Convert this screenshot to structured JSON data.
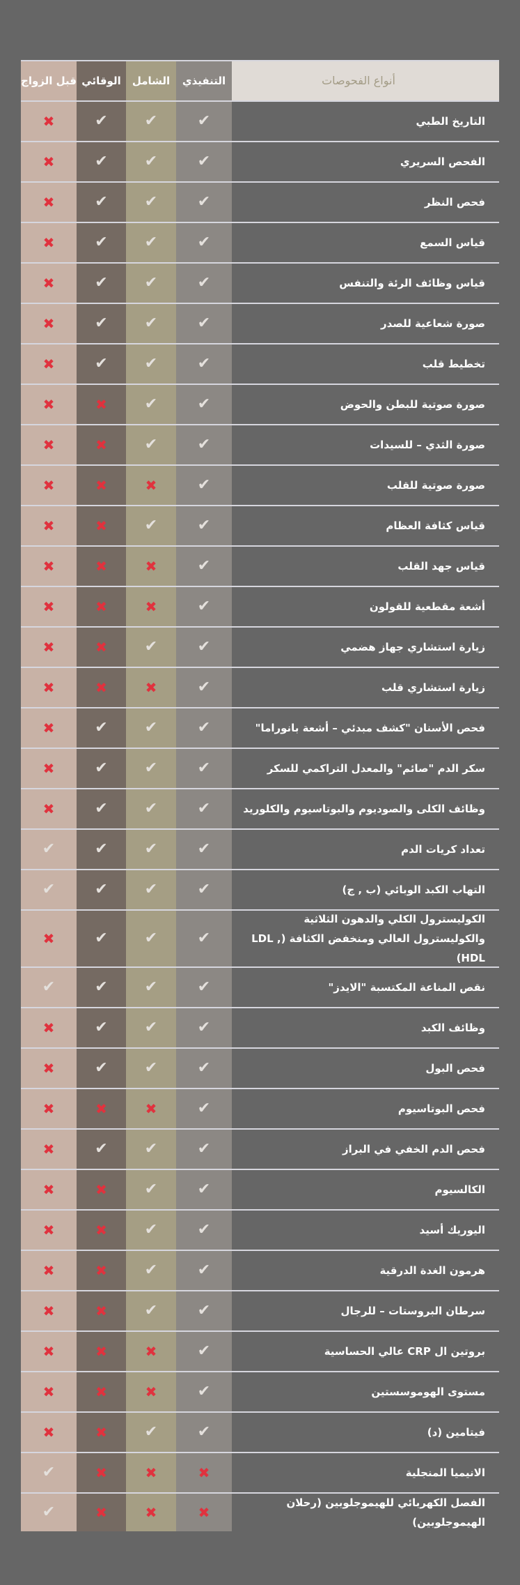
{
  "header": {
    "label": "أنواع الفحوصات",
    "plans": [
      "التنفيذي",
      "الشامل",
      "الوقائي",
      "قبل الزواج"
    ]
  },
  "colors": {
    "background": "#666666",
    "executive": "#8c8884",
    "comprehensive": "#a59e84",
    "preventive": "#756a62",
    "premarital": "#c8b2a6",
    "check": "#e4e0dc",
    "cross": "#e0323e"
  },
  "icons": {
    "included": "check-icon",
    "excluded": "cross-icon"
  },
  "rows": [
    {
      "name": "التاريخ الطبي",
      "values": [
        true,
        true,
        true,
        false
      ]
    },
    {
      "name": "الفحص السريري",
      "values": [
        true,
        true,
        true,
        false
      ]
    },
    {
      "name": "فحص النظر",
      "values": [
        true,
        true,
        true,
        false
      ]
    },
    {
      "name": "قياس السمع",
      "values": [
        true,
        true,
        true,
        false
      ]
    },
    {
      "name": "قياس وظائف الرئة والتنفس",
      "values": [
        true,
        true,
        true,
        false
      ]
    },
    {
      "name": "صورة شعاعية للصدر",
      "values": [
        true,
        true,
        true,
        false
      ]
    },
    {
      "name": "تخطيط قلب",
      "values": [
        true,
        true,
        true,
        false
      ]
    },
    {
      "name": "صورة صوتية للبطن والحوض",
      "values": [
        true,
        true,
        false,
        false
      ]
    },
    {
      "name": "صورة الثدي – للسيدات",
      "values": [
        true,
        true,
        false,
        false
      ]
    },
    {
      "name": "صورة صوتية للقلب",
      "values": [
        true,
        false,
        false,
        false
      ]
    },
    {
      "name": "قياس كثافة العظام",
      "values": [
        true,
        true,
        false,
        false
      ]
    },
    {
      "name": "قياس جهد القلب",
      "values": [
        true,
        false,
        false,
        false
      ]
    },
    {
      "name": "أشعة مقطعية للقولون",
      "values": [
        true,
        false,
        false,
        false
      ]
    },
    {
      "name": "زيارة استشاري جهاز هضمي",
      "values": [
        true,
        true,
        false,
        false
      ]
    },
    {
      "name": "زيارة استشاري قلب",
      "values": [
        true,
        false,
        false,
        false
      ]
    },
    {
      "name": "فحص الأسنان \"كشف مبدئي – أشعة بانوراما\"",
      "values": [
        true,
        true,
        true,
        false
      ]
    },
    {
      "name": "سكر الدم \"صائم\" والمعدل التراكمي للسكر",
      "values": [
        true,
        true,
        true,
        false
      ]
    },
    {
      "name": "وظائف الكلى والصوديوم والبوتاسيوم والكلوريد",
      "values": [
        true,
        true,
        true,
        false
      ]
    },
    {
      "name": "تعداد كريات الدم",
      "values": [
        true,
        true,
        true,
        true
      ]
    },
    {
      "name": "التهاب الكبد الوبائي (ب , ج)",
      "values": [
        true,
        true,
        true,
        true
      ]
    },
    {
      "name": "الكوليسترول الكلي والدهون الثلاثية والكوليسترول العالي ومنخفض الكثافة (LDL , HDL)",
      "values": [
        true,
        true,
        true,
        false
      ]
    },
    {
      "name": "نقص المناعة المكتسبة \"الايدز\"",
      "values": [
        true,
        true,
        true,
        true
      ]
    },
    {
      "name": "وظائف الكبد",
      "values": [
        true,
        true,
        true,
        false
      ]
    },
    {
      "name": "فحص البول",
      "values": [
        true,
        true,
        true,
        false
      ]
    },
    {
      "name": "فحص البوتاسيوم",
      "values": [
        true,
        false,
        false,
        false
      ]
    },
    {
      "name": "فحص الدم الخفي في البراز",
      "values": [
        true,
        true,
        true,
        false
      ]
    },
    {
      "name": "الكالسيوم",
      "values": [
        true,
        true,
        false,
        false
      ]
    },
    {
      "name": "اليوريك أسيد",
      "values": [
        true,
        true,
        false,
        false
      ]
    },
    {
      "name": "هرمون الغدة الدرقية",
      "values": [
        true,
        true,
        false,
        false
      ]
    },
    {
      "name": "سرطان البروستات – للرجال",
      "values": [
        true,
        true,
        false,
        false
      ]
    },
    {
      "name": "بروتين ال CRP عالي الحساسية",
      "values": [
        true,
        false,
        false,
        false
      ]
    },
    {
      "name": "مستوى الهوموسستين",
      "values": [
        true,
        false,
        false,
        false
      ]
    },
    {
      "name": "فيتامين (د)",
      "values": [
        true,
        true,
        false,
        false
      ]
    },
    {
      "name": "الانيميا المنجلية",
      "values": [
        false,
        false,
        false,
        true
      ]
    },
    {
      "name": "الفصل الكهربائي للهيموجلوبين (رحلان الهيموجلوبين)",
      "values": [
        false,
        false,
        false,
        true
      ]
    }
  ]
}
